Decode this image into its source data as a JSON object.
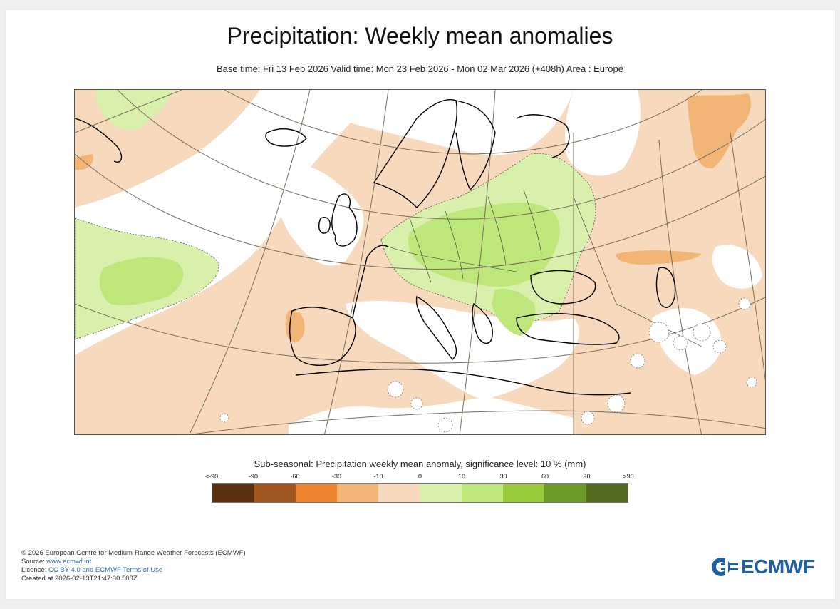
{
  "header": {
    "title": "Precipitation: Weekly mean anomalies",
    "subtitle": "Base time: Fri 13 Feb 2026 Valid time: Mon 23 Feb 2026 - Mon 02 Mar 2026 (+408h) Area : Europe"
  },
  "legend": {
    "title": "Sub-seasonal: Precipitation weekly mean anomaly, significance level: 10 % (mm)",
    "ticks": [
      "<-90",
      "-90",
      "-60",
      "-30",
      "-10",
      "0",
      "10",
      "30",
      "60",
      "90",
      ">90"
    ],
    "colors": [
      "#5a3010",
      "#a0561e",
      "#ee8430",
      "#f2b575",
      "#f7d9bd",
      "#d9f0ad",
      "#bde67b",
      "#97cb3b",
      "#6e9a2a",
      "#536b1e"
    ]
  },
  "map_colors": {
    "ocean_neutral": "#ffffff",
    "dry_light": "#f7d9bd",
    "dry_medium": "#f2b575",
    "wet_light": "#d9f0ad",
    "wet_medium": "#bde67b"
  },
  "footer": {
    "copyright": "© 2026 European Centre for Medium-Range Weather Forecasts (ECMWF)",
    "source_label": "Source: ",
    "source_link": "www.ecmwf.int",
    "licence_label": "Licence: ",
    "licence_link": "CC BY 4.0 and ECMWF Terms of Use",
    "created": "Created at 2026-02-13T21:47:30.503Z"
  },
  "logo": {
    "text": "ECMWF",
    "icon": "ecmwf-logo-icon"
  }
}
